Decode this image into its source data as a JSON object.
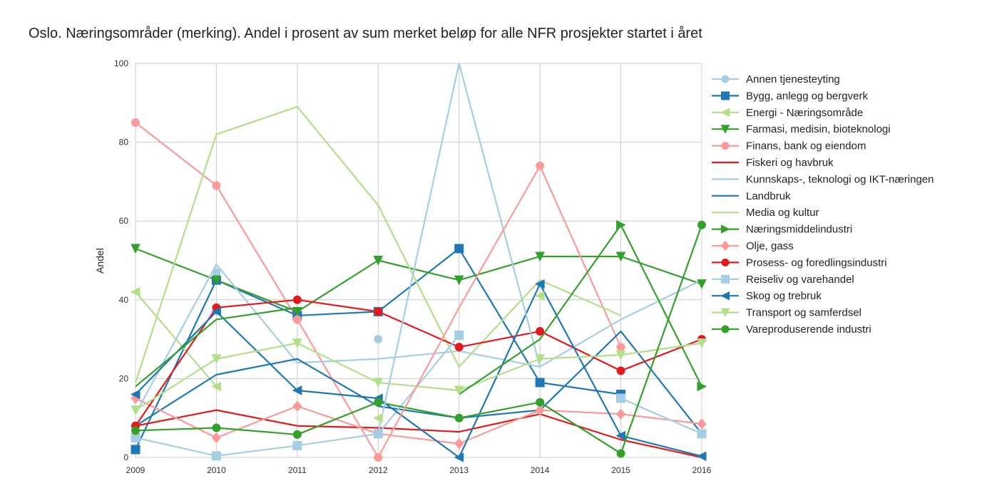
{
  "chart_data": {
    "type": "line",
    "title": "Oslo. Næringsområder (merking). Andel i prosent av sum merket beløp for alle NFR prosjekter startet i året",
    "xlabel": "",
    "ylabel": "Andel",
    "xlim": [
      2009,
      2016
    ],
    "ylim": [
      0,
      100
    ],
    "x": [
      2009,
      2010,
      2011,
      2012,
      2013,
      2014,
      2015,
      2016
    ],
    "x_ticks": [
      "2009",
      "2010",
      "2011",
      "2012",
      "2013",
      "2014",
      "2015",
      "2016"
    ],
    "y_ticks": [
      "0",
      "20",
      "40",
      "60",
      "80",
      "100"
    ],
    "grid": true,
    "legend_position": "right",
    "series": [
      {
        "name": "Annen tjenesteyting",
        "color": "#a6cee3",
        "marker": "circle",
        "values": [
          null,
          47,
          null,
          30,
          null,
          null,
          null,
          null
        ]
      },
      {
        "name": "Bygg, anlegg og bergverk",
        "color": "#1f78b4",
        "marker": "square",
        "values": [
          2,
          45,
          36,
          37,
          53,
          19,
          16,
          null
        ]
      },
      {
        "name": "Energi - Næringsområde",
        "color": "#b2df8a",
        "marker": "triangle-left",
        "values": [
          42,
          18,
          null,
          10,
          null,
          41,
          null,
          null
        ]
      },
      {
        "name": "Farmasi, medisin, bioteknologi",
        "color": "#33a02c",
        "marker": "triangle-down",
        "values": [
          53,
          45,
          37,
          50,
          45,
          51,
          51,
          44
        ]
      },
      {
        "name": "Finans, bank og eiendom",
        "color": "#fb9a99",
        "marker": "circle",
        "values": [
          85,
          69,
          35,
          0,
          null,
          74,
          28,
          null
        ]
      },
      {
        "name": "Fiskeri og havbruk",
        "color": "#e31a1c",
        "marker": "none",
        "values": [
          8,
          12,
          8,
          7.5,
          6.5,
          11,
          4.5,
          0
        ]
      },
      {
        "name": "Kunnskaps-, teknologi og IKT-næringen",
        "color": "#a6cee3",
        "marker": "none",
        "values": [
          11,
          49,
          24,
          25,
          27,
          23,
          35,
          45
        ]
      },
      {
        "name": "Landbruk",
        "color": "#1f78b4",
        "marker": "none",
        "values": [
          8,
          21,
          25,
          13,
          10,
          12,
          32,
          6
        ]
      },
      {
        "name": "Media og kultur",
        "color": "#b2df8a",
        "marker": "none",
        "values": [
          19,
          82,
          89,
          64,
          23,
          45,
          36,
          null
        ]
      },
      {
        "name": "Næringsmiddelindustri",
        "color": "#33a02c",
        "marker": "triangle-right",
        "values": [
          null,
          null,
          null,
          null,
          null,
          null,
          59,
          18
        ]
      },
      {
        "name": "Olje, gass",
        "color": "#fb9a99",
        "marker": "diamond",
        "values": [
          15,
          5,
          13,
          6,
          3.5,
          12,
          11,
          8.5
        ]
      },
      {
        "name": "Prosess- og foredlingsindustri",
        "color": "#e31a1c",
        "marker": "circle",
        "values": [
          8,
          38,
          40,
          37,
          28,
          32,
          22,
          30
        ]
      },
      {
        "name": "Reiseliv og varehandel",
        "color": "#a6cee3",
        "marker": "square",
        "values": [
          5,
          0.4,
          3,
          6,
          31,
          null,
          15,
          6
        ]
      },
      {
        "name": "Skog og trebruk",
        "color": "#1f78b4",
        "marker": "triangle-left",
        "values": [
          16,
          37,
          17,
          15,
          0,
          44,
          5.5,
          0.3
        ]
      },
      {
        "name": "Transport og samferdsel",
        "color": "#b2df8a",
        "marker": "triangle-down",
        "values": [
          12,
          25,
          29,
          19,
          17,
          25,
          26,
          29
        ]
      },
      {
        "name": "Vareproduserende industri",
        "color": "#33a02c",
        "marker": "circle",
        "values": [
          6.8,
          7.5,
          5.8,
          14,
          10,
          14,
          1,
          59
        ]
      }
    ],
    "extra_segments": [
      {
        "series": "Kunnskaps-, teknologi og IKT-næringen",
        "x": [
          2012,
          2013,
          2014
        ],
        "values": [
          6,
          100,
          23
        ]
      },
      {
        "series": "Finans, bank og eiendom",
        "x": [
          2012,
          2013,
          2014
        ],
        "values": [
          0,
          38,
          74
        ]
      },
      {
        "series": "Farmasi, medisin, bioteknologi",
        "x": [
          2009,
          2010,
          2011
        ],
        "values": [
          18,
          35,
          38
        ]
      },
      {
        "series": "Vareproduserende industri",
        "x": [
          2013,
          2014,
          2015
        ],
        "values": [
          16,
          30,
          59
        ]
      }
    ]
  }
}
